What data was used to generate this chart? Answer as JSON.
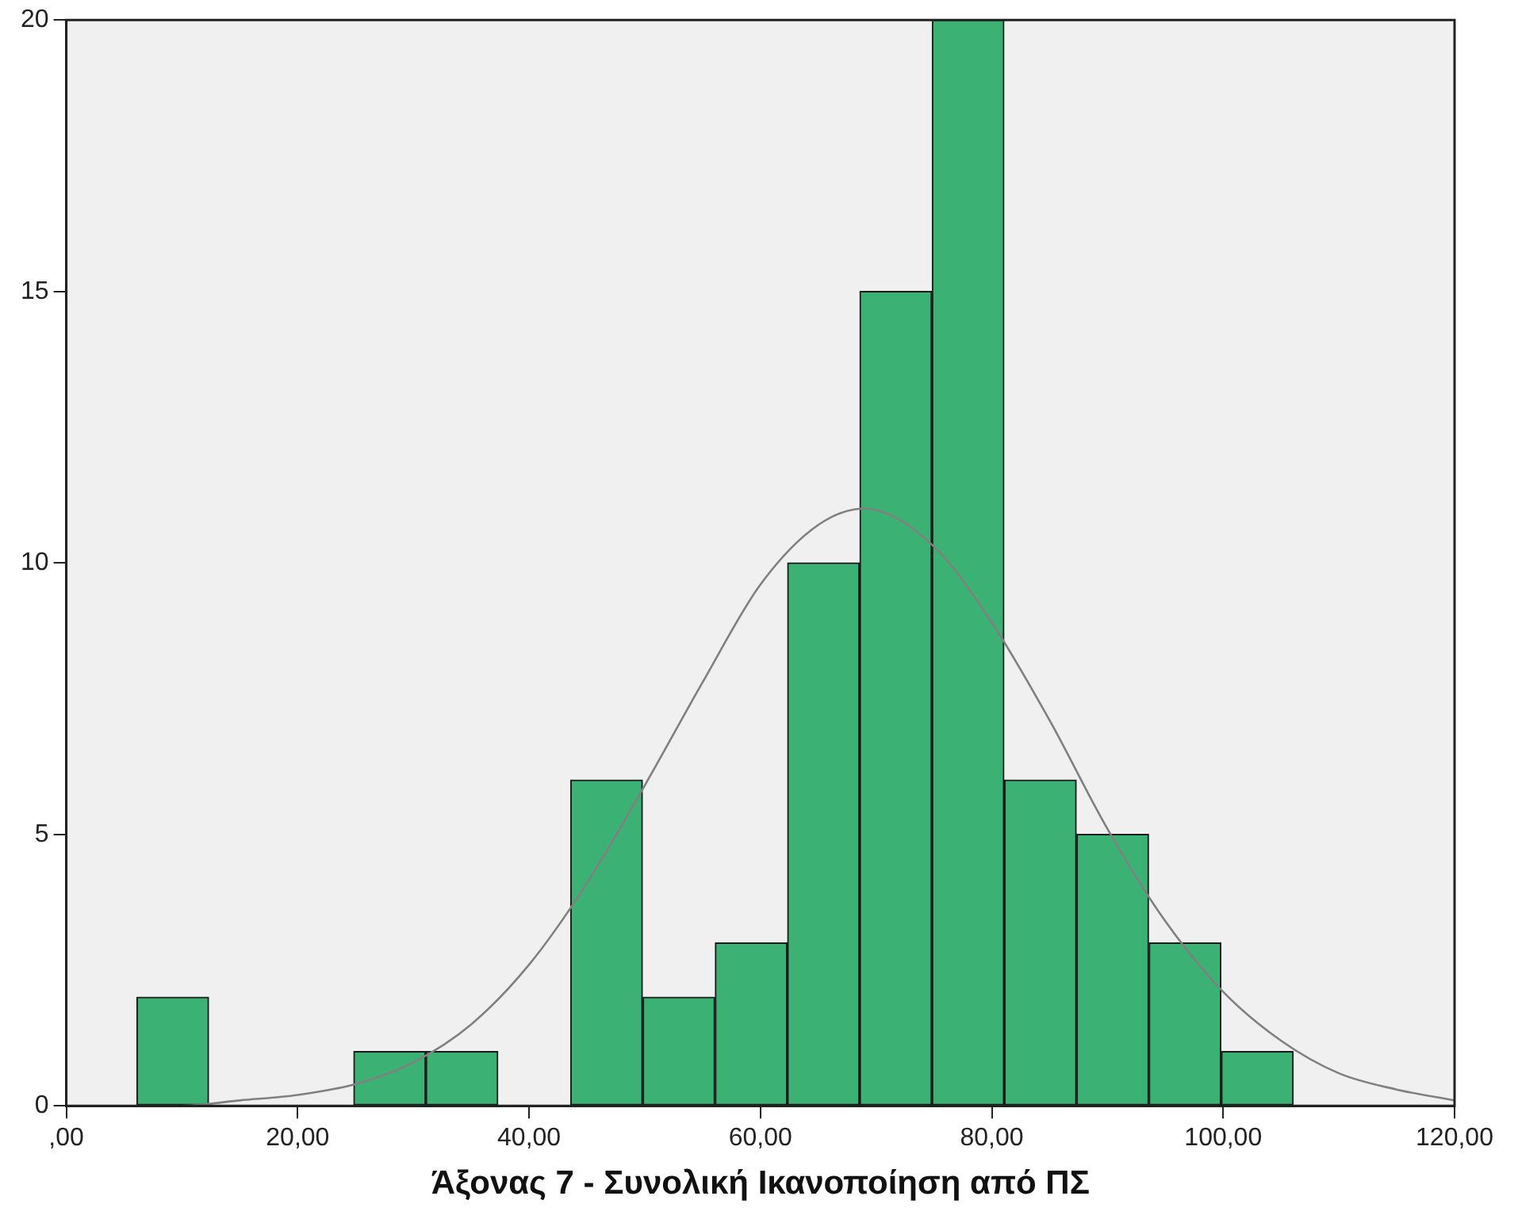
{
  "chart_data": {
    "type": "histogram",
    "xlabel": "Άξονας 7 - Συνολική Ικανοποίηση από ΠΣ",
    "xlim": [
      0,
      120
    ],
    "xticks": [
      {
        "value": 0,
        "label": ",00"
      },
      {
        "value": 20,
        "label": "20,00"
      },
      {
        "value": 40,
        "label": "40,00"
      },
      {
        "value": 60,
        "label": "60,00"
      },
      {
        "value": 80,
        "label": "80,00"
      },
      {
        "value": 100,
        "label": "100,00"
      },
      {
        "value": 120,
        "label": "120,00"
      }
    ],
    "ylim": [
      0,
      20
    ],
    "yticks": [
      0,
      5,
      10,
      15,
      20
    ],
    "grid": false,
    "legend": false,
    "series": [
      {
        "type": "histogram",
        "color": "#3bb273",
        "bins": [
          6.1,
          12.3,
          18.6,
          24.8,
          31.1,
          37.3,
          43.6,
          49.8,
          56.1,
          62.3,
          68.6,
          74.8,
          81.1,
          87.3,
          93.6,
          99.8,
          106.1
        ],
        "values": [
          2,
          0,
          0,
          1,
          1,
          0,
          6,
          2,
          3,
          10,
          15,
          20,
          6,
          5,
          3,
          1
        ]
      },
      {
        "type": "line",
        "color": "#808080",
        "marker": "none",
        "x": [
          0,
          5,
          10,
          15,
          20,
          25,
          30,
          35,
          40,
          45,
          50,
          55,
          60,
          65,
          69,
          75,
          80,
          85,
          90,
          95,
          100,
          105,
          110,
          115,
          120
        ],
        "values": [
          0,
          0,
          0,
          0.1,
          0.2,
          0.4,
          0.8,
          1.5,
          2.6,
          4.1,
          5.9,
          7.8,
          9.6,
          10.7,
          11,
          10.3,
          8.9,
          7.1,
          5.1,
          3.4,
          2.1,
          1.2,
          0.6,
          0.3,
          0.1
        ]
      }
    ]
  }
}
